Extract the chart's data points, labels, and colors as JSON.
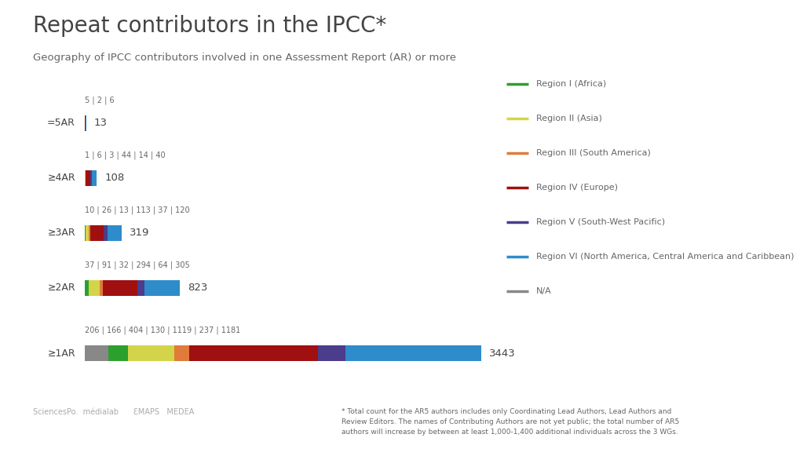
{
  "title": "Repeat contributors in the IPCC*",
  "subtitle": "Geography of IPCC contributors involved in one Assessment Report (AR) or more",
  "rows": [
    {
      "label": "=5AR",
      "total": 13,
      "segments": [
        {
          "val": 5,
          "color": "#a01010"
        },
        {
          "val": 2,
          "color": "#4b3c8c"
        },
        {
          "val": 6,
          "color": "#2e8cca"
        }
      ],
      "ann": "5 | 2 | 6"
    },
    {
      "label": "≥4AR",
      "total": 108,
      "segments": [
        {
          "val": 1,
          "color": "#2ca02c"
        },
        {
          "val": 6,
          "color": "#d4d44a"
        },
        {
          "val": 3,
          "color": "#e07b39"
        },
        {
          "val": 44,
          "color": "#a01010"
        },
        {
          "val": 14,
          "color": "#4b3c8c"
        },
        {
          "val": 40,
          "color": "#2e8cca"
        }
      ],
      "ann": "1 | 6 | 3 | 44 | 14 | 40"
    },
    {
      "label": "≥3AR",
      "total": 319,
      "segments": [
        {
          "val": 10,
          "color": "#2ca02c"
        },
        {
          "val": 26,
          "color": "#d4d44a"
        },
        {
          "val": 13,
          "color": "#e07b39"
        },
        {
          "val": 113,
          "color": "#a01010"
        },
        {
          "val": 37,
          "color": "#4b3c8c"
        },
        {
          "val": 120,
          "color": "#2e8cca"
        }
      ],
      "ann": "10 | 26 | 13 | 113 | 37 | 120"
    },
    {
      "label": "≥2AR",
      "total": 823,
      "segments": [
        {
          "val": 37,
          "color": "#2ca02c"
        },
        {
          "val": 91,
          "color": "#d4d44a"
        },
        {
          "val": 32,
          "color": "#e07b39"
        },
        {
          "val": 294,
          "color": "#a01010"
        },
        {
          "val": 64,
          "color": "#4b3c8c"
        },
        {
          "val": 305,
          "color": "#2e8cca"
        }
      ],
      "ann": "37 | 91 | 32 | 294 | 64 | 305"
    },
    {
      "label": "≥1AR",
      "total": 3443,
      "segments": [
        {
          "val": 206,
          "color": "#888888"
        },
        {
          "val": 166,
          "color": "#2ca02c"
        },
        {
          "val": 404,
          "color": "#d4d44a"
        },
        {
          "val": 130,
          "color": "#e07b39"
        },
        {
          "val": 1119,
          "color": "#a01010"
        },
        {
          "val": 237,
          "color": "#4b3c8c"
        },
        {
          "val": 1181,
          "color": "#2e8cca"
        }
      ],
      "ann": "206 | 166 | 404 | 130 | 1119 | 237 | 1181"
    }
  ],
  "legend_entries": [
    {
      "label": "Region I (Africa)",
      "color": "#2ca02c"
    },
    {
      "label": "Region II (Asia)",
      "color": "#d4d44a"
    },
    {
      "label": "Region III (South America)",
      "color": "#e07b39"
    },
    {
      "label": "Region IV (Europe)",
      "color": "#a01010"
    },
    {
      "label": "Region V (South-West Pacific)",
      "color": "#4b3c8c"
    },
    {
      "label": "Region VI (North America, Central America and Caribbean)",
      "color": "#2e8cca"
    },
    {
      "label": "N/A",
      "color": "#888888"
    }
  ],
  "footnote_left": "* Total count for the AR5 authors includes only Coordinating Lead Authors, Lead Authors and\nReview Editors. The names of Contributing Authors are not yet public; the total number of AR5\nauthors will increase by between at least 1,000-1,400 additional individuals across the 3 WGs.",
  "max_value": 3443,
  "figw": 10.2,
  "figh": 5.95
}
